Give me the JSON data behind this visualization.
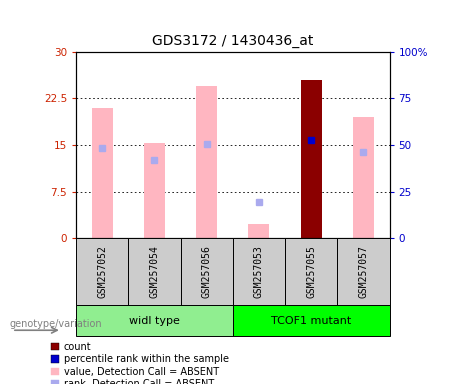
{
  "title": "GDS3172 / 1430436_at",
  "samples": [
    "GSM257052",
    "GSM257054",
    "GSM257056",
    "GSM257053",
    "GSM257055",
    "GSM257057"
  ],
  "groups": [
    {
      "label": "widl type",
      "indices": [
        0,
        1,
        2
      ],
      "color": "#90EE90"
    },
    {
      "label": "TCOF1 mutant",
      "indices": [
        3,
        4,
        5
      ],
      "color": "#00FF00"
    }
  ],
  "bar_values": [
    21.0,
    15.3,
    24.5,
    2.2,
    25.5,
    19.5
  ],
  "bar_colors": [
    "#FFB6C1",
    "#FFB6C1",
    "#FFB6C1",
    "#FFB6C1",
    "#8B0000",
    "#FFB6C1"
  ],
  "rank_values": [
    14.5,
    12.5,
    15.2,
    null,
    15.8,
    13.8
  ],
  "rank_colors": [
    "#AAAAEE",
    "#AAAAEE",
    "#AAAAEE",
    null,
    "#0000CC",
    "#AAAAEE"
  ],
  "rank_absent_values": [
    null,
    null,
    null,
    5.8,
    null,
    null
  ],
  "ylim_left": [
    0,
    30
  ],
  "ylim_right": [
    0,
    100
  ],
  "yticks_left": [
    0,
    7.5,
    15,
    22.5,
    30
  ],
  "yticks_right": [
    0,
    25,
    50,
    75,
    100
  ],
  "ylabel_left_color": "#CC2200",
  "ylabel_right_color": "#0000CC",
  "background_color": "#FFFFFF",
  "plot_bg_color": "#FFFFFF",
  "sample_box_color": "#CCCCCC",
  "legend_items": [
    {
      "label": "count",
      "color": "#8B0000"
    },
    {
      "label": "percentile rank within the sample",
      "color": "#0000CC"
    },
    {
      "label": "value, Detection Call = ABSENT",
      "color": "#FFB6C1"
    },
    {
      "label": "rank, Detection Call = ABSENT",
      "color": "#AAAAEE"
    }
  ],
  "genotype_label": "genotype/variation"
}
